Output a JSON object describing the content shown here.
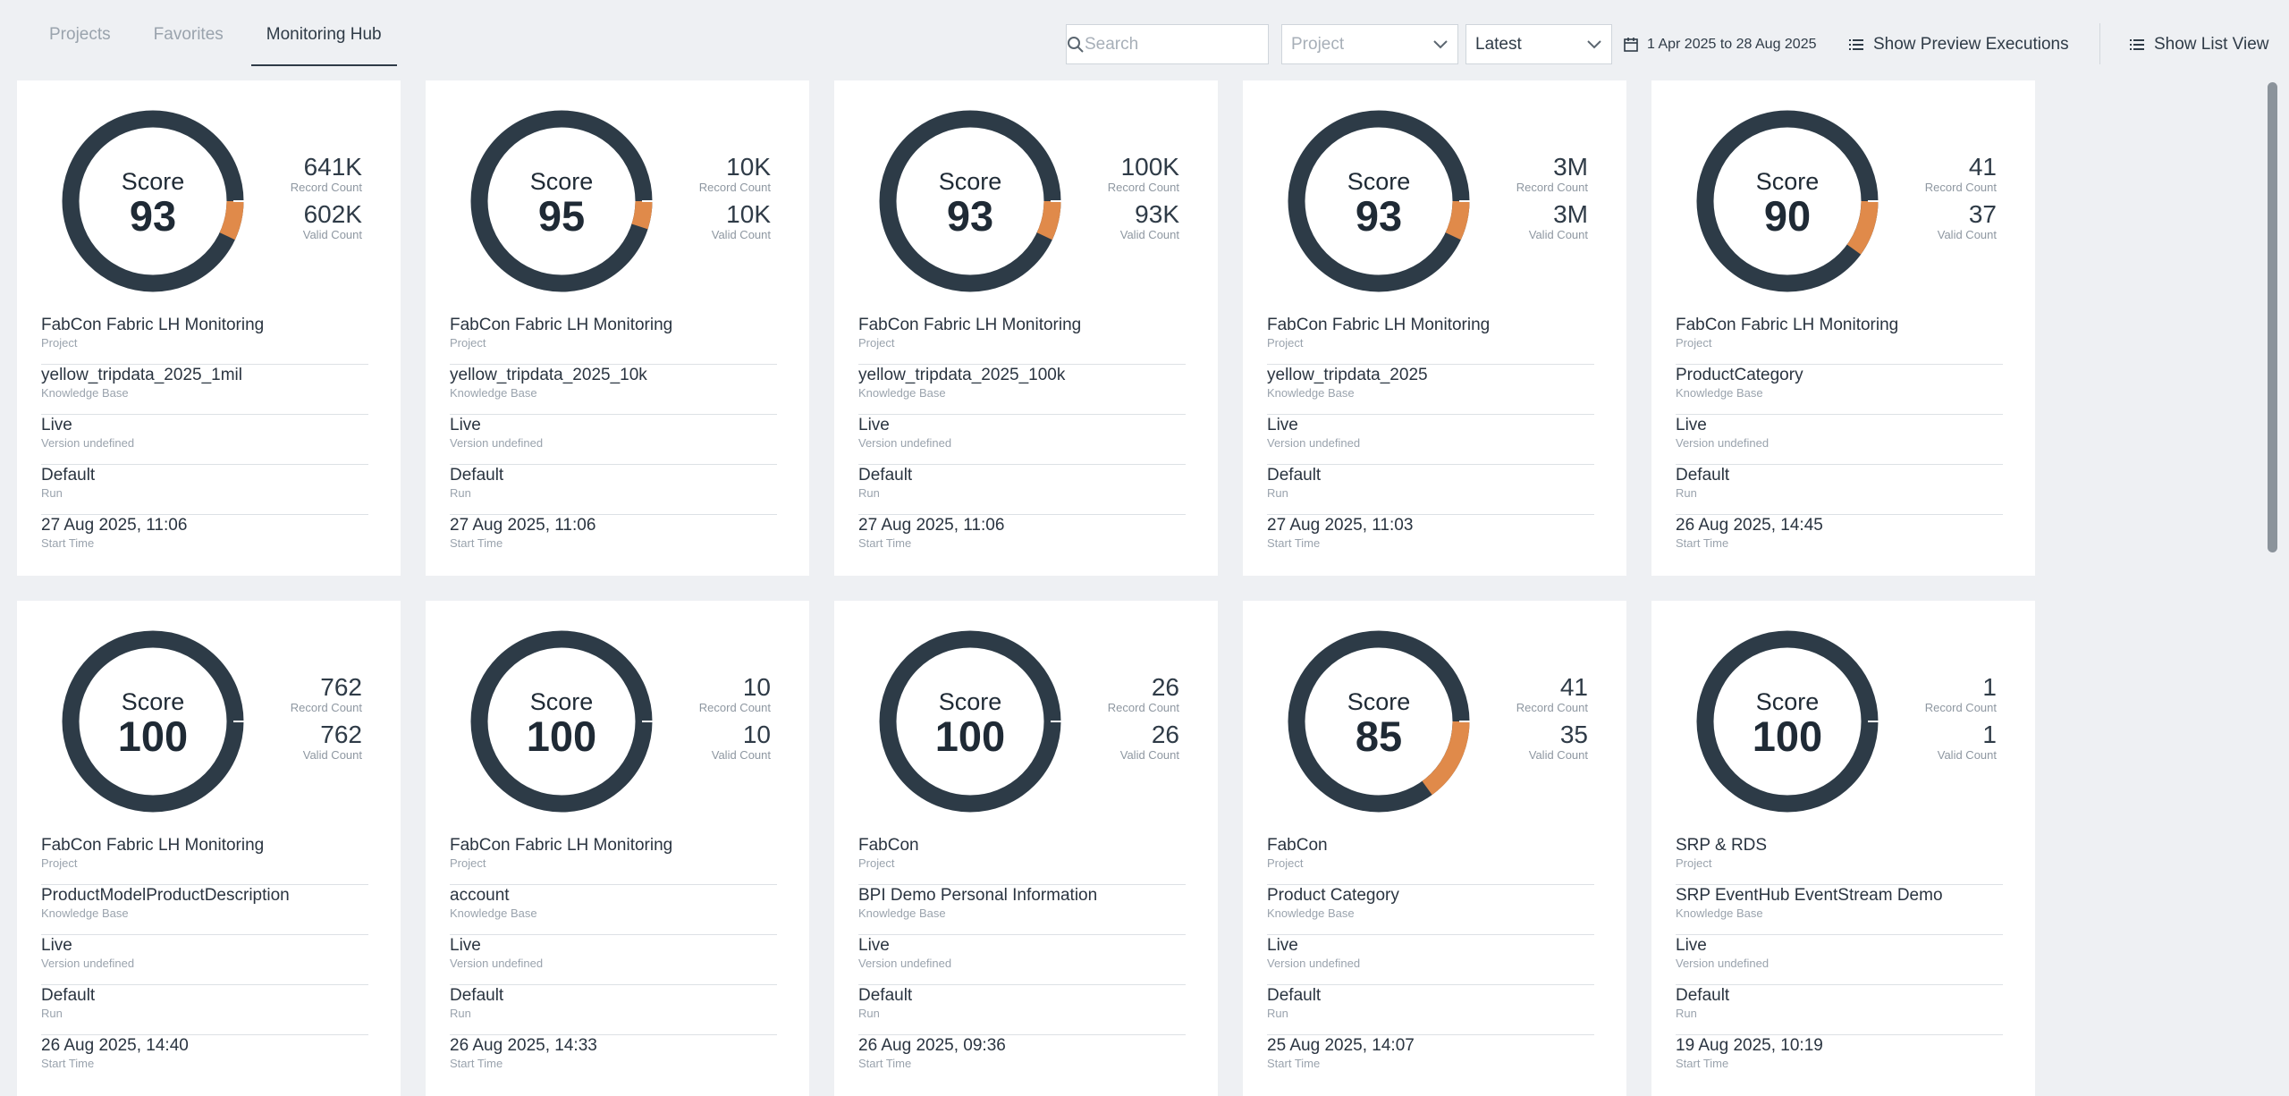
{
  "tabs": [
    {
      "label": "Projects",
      "active": false
    },
    {
      "label": "Favorites",
      "active": false
    },
    {
      "label": "Monitoring Hub",
      "active": true
    }
  ],
  "toolbar": {
    "search_placeholder": "Search",
    "project_placeholder": "Project",
    "sort_value": "Latest",
    "date_range": "1 Apr 2025 to 28 Aug 2025",
    "preview_label": "Show Preview Executions",
    "list_view_label": "Show List View"
  },
  "labels": {
    "score": "Score",
    "record_count": "Record Count",
    "valid_count": "Valid Count",
    "project": "Project",
    "knowledge_base": "Knowledge Base",
    "version": "Version undefined",
    "run": "Run",
    "start_time": "Start Time"
  },
  "colors": {
    "ring": "#2d3b47",
    "invalid": "#e08a4a",
    "accent_text": "#2f3b47"
  },
  "cards": [
    {
      "score": "93",
      "score_fraction": 0.93,
      "record_count": "641K",
      "valid_count": "602K",
      "project": "FabCon Fabric LH Monitoring",
      "knowledge_base": "yellow_tripdata_2025_1mil",
      "environment": "Live",
      "run": "Default",
      "start_time": "27 Aug 2025, 11:06"
    },
    {
      "score": "95",
      "score_fraction": 0.95,
      "record_count": "10K",
      "valid_count": "10K",
      "project": "FabCon Fabric LH Monitoring",
      "knowledge_base": "yellow_tripdata_2025_10k",
      "environment": "Live",
      "run": "Default",
      "start_time": "27 Aug 2025, 11:06"
    },
    {
      "score": "93",
      "score_fraction": 0.93,
      "record_count": "100K",
      "valid_count": "93K",
      "project": "FabCon Fabric LH Monitoring",
      "knowledge_base": "yellow_tripdata_2025_100k",
      "environment": "Live",
      "run": "Default",
      "start_time": "27 Aug 2025, 11:06"
    },
    {
      "score": "93",
      "score_fraction": 0.93,
      "record_count": "3M",
      "valid_count": "3M",
      "project": "FabCon Fabric LH Monitoring",
      "knowledge_base": "yellow_tripdata_2025",
      "environment": "Live",
      "run": "Default",
      "start_time": "27 Aug 2025, 11:03"
    },
    {
      "score": "90",
      "score_fraction": 0.9,
      "record_count": "41",
      "valid_count": "37",
      "project": "FabCon Fabric LH Monitoring",
      "knowledge_base": "ProductCategory",
      "environment": "Live",
      "run": "Default",
      "start_time": "26 Aug 2025, 14:45"
    },
    {
      "score": "100",
      "score_fraction": 1.0,
      "record_count": "762",
      "valid_count": "762",
      "project": "FabCon Fabric LH Monitoring",
      "knowledge_base": "ProductModelProductDescription",
      "environment": "Live",
      "run": "Default",
      "start_time": "26 Aug 2025, 14:40"
    },
    {
      "score": "100",
      "score_fraction": 1.0,
      "record_count": "10",
      "valid_count": "10",
      "project": "FabCon Fabric LH Monitoring",
      "knowledge_base": "account",
      "environment": "Live",
      "run": "Default",
      "start_time": "26 Aug 2025, 14:33"
    },
    {
      "score": "100",
      "score_fraction": 1.0,
      "record_count": "26",
      "valid_count": "26",
      "project": "FabCon",
      "knowledge_base": "BPI Demo Personal Information",
      "environment": "Live",
      "run": "Default",
      "start_time": "26 Aug 2025, 09:36"
    },
    {
      "score": "85",
      "score_fraction": 0.85,
      "record_count": "41",
      "valid_count": "35",
      "project": "FabCon",
      "knowledge_base": "Product Category",
      "environment": "Live",
      "run": "Default",
      "start_time": "25 Aug 2025, 14:07"
    },
    {
      "score": "100",
      "score_fraction": 1.0,
      "record_count": "1",
      "valid_count": "1",
      "project": "SRP & RDS",
      "knowledge_base": "SRP EventHub EventStream Demo",
      "environment": "Live",
      "run": "Default",
      "start_time": "19 Aug 2025, 10:19"
    }
  ]
}
